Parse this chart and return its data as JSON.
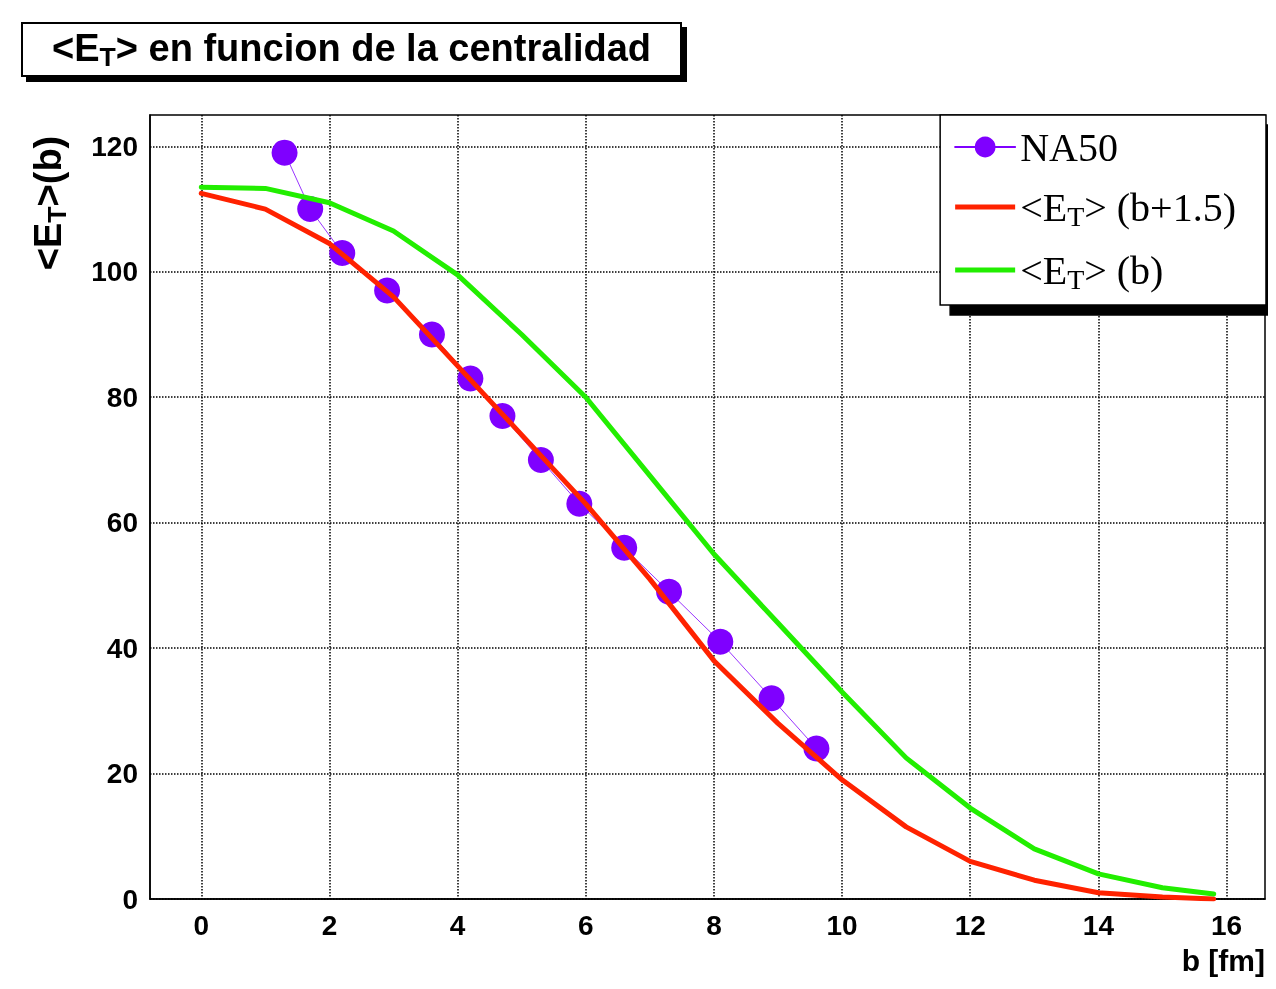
{
  "chart_data": {
    "type": "line",
    "title": "<E$_{T}$> en funcion de la centralidad",
    "xlabel": "b [fm]",
    "ylabel": "<E$_{T}$>(b)",
    "xlim": [
      -0.8,
      16.6
    ],
    "xticks": [
      0,
      2,
      4,
      6,
      8,
      10,
      12,
      14,
      16
    ],
    "ylim": [
      0,
      125
    ],
    "yticks": [
      0,
      20,
      40,
      60,
      80,
      100,
      120
    ],
    "grid": true,
    "legend": "top right",
    "line_style": "solid",
    "series": [
      {
        "name": "NA50",
        "marker": "circle",
        "color": "#7f00ff",
        "x": [
          1.3,
          1.7,
          2.2,
          2.9,
          3.6,
          4.2,
          4.7,
          5.3,
          5.9,
          6.6,
          7.3,
          8.1,
          8.9,
          9.6
        ],
        "values": [
          119,
          110,
          103,
          97,
          90,
          83,
          77,
          70,
          63,
          56,
          49,
          41,
          32,
          24
        ]
      },
      {
        "name": "<E$_{T}$> (b+1.5)",
        "marker": "none",
        "color": "#ff2200",
        "x": [
          0,
          1,
          2,
          3,
          4,
          5,
          6,
          7,
          8,
          9,
          10,
          11,
          12,
          13,
          14,
          15,
          15.8
        ],
        "values": [
          112.5,
          110,
          104.5,
          96,
          85,
          74,
          63,
          51,
          38,
          28,
          19,
          11.5,
          6,
          3,
          1,
          0.3,
          0
        ]
      },
      {
        "name": "<E$_{T}$> (b)",
        "marker": "none",
        "color": "#22ee00",
        "x": [
          0,
          1,
          2,
          3,
          4,
          5,
          6,
          7,
          8,
          9,
          10,
          11,
          12,
          13,
          14,
          15,
          15.8
        ],
        "values": [
          113.5,
          113.3,
          111,
          106.5,
          99.5,
          90,
          80,
          67.5,
          55,
          44,
          33,
          22.5,
          14.5,
          8,
          4,
          1.8,
          0.8
        ]
      }
    ]
  }
}
